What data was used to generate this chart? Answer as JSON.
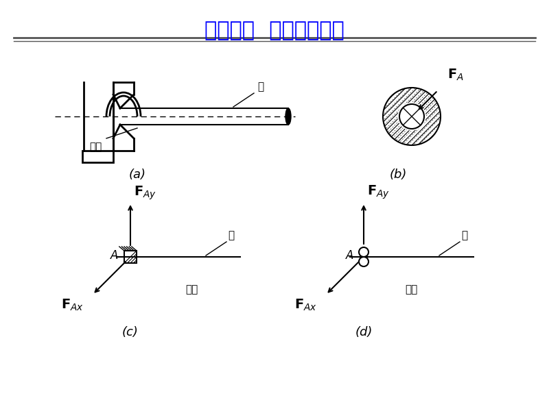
{
  "title": "径向轴承  （向心轴承）",
  "title_color": "#0000FF",
  "bg_color": "#FFFFFF",
  "line_color": "#000000",
  "label_a": "(a)",
  "label_b": "(b)",
  "label_c": "(c)",
  "label_d": "(d)"
}
